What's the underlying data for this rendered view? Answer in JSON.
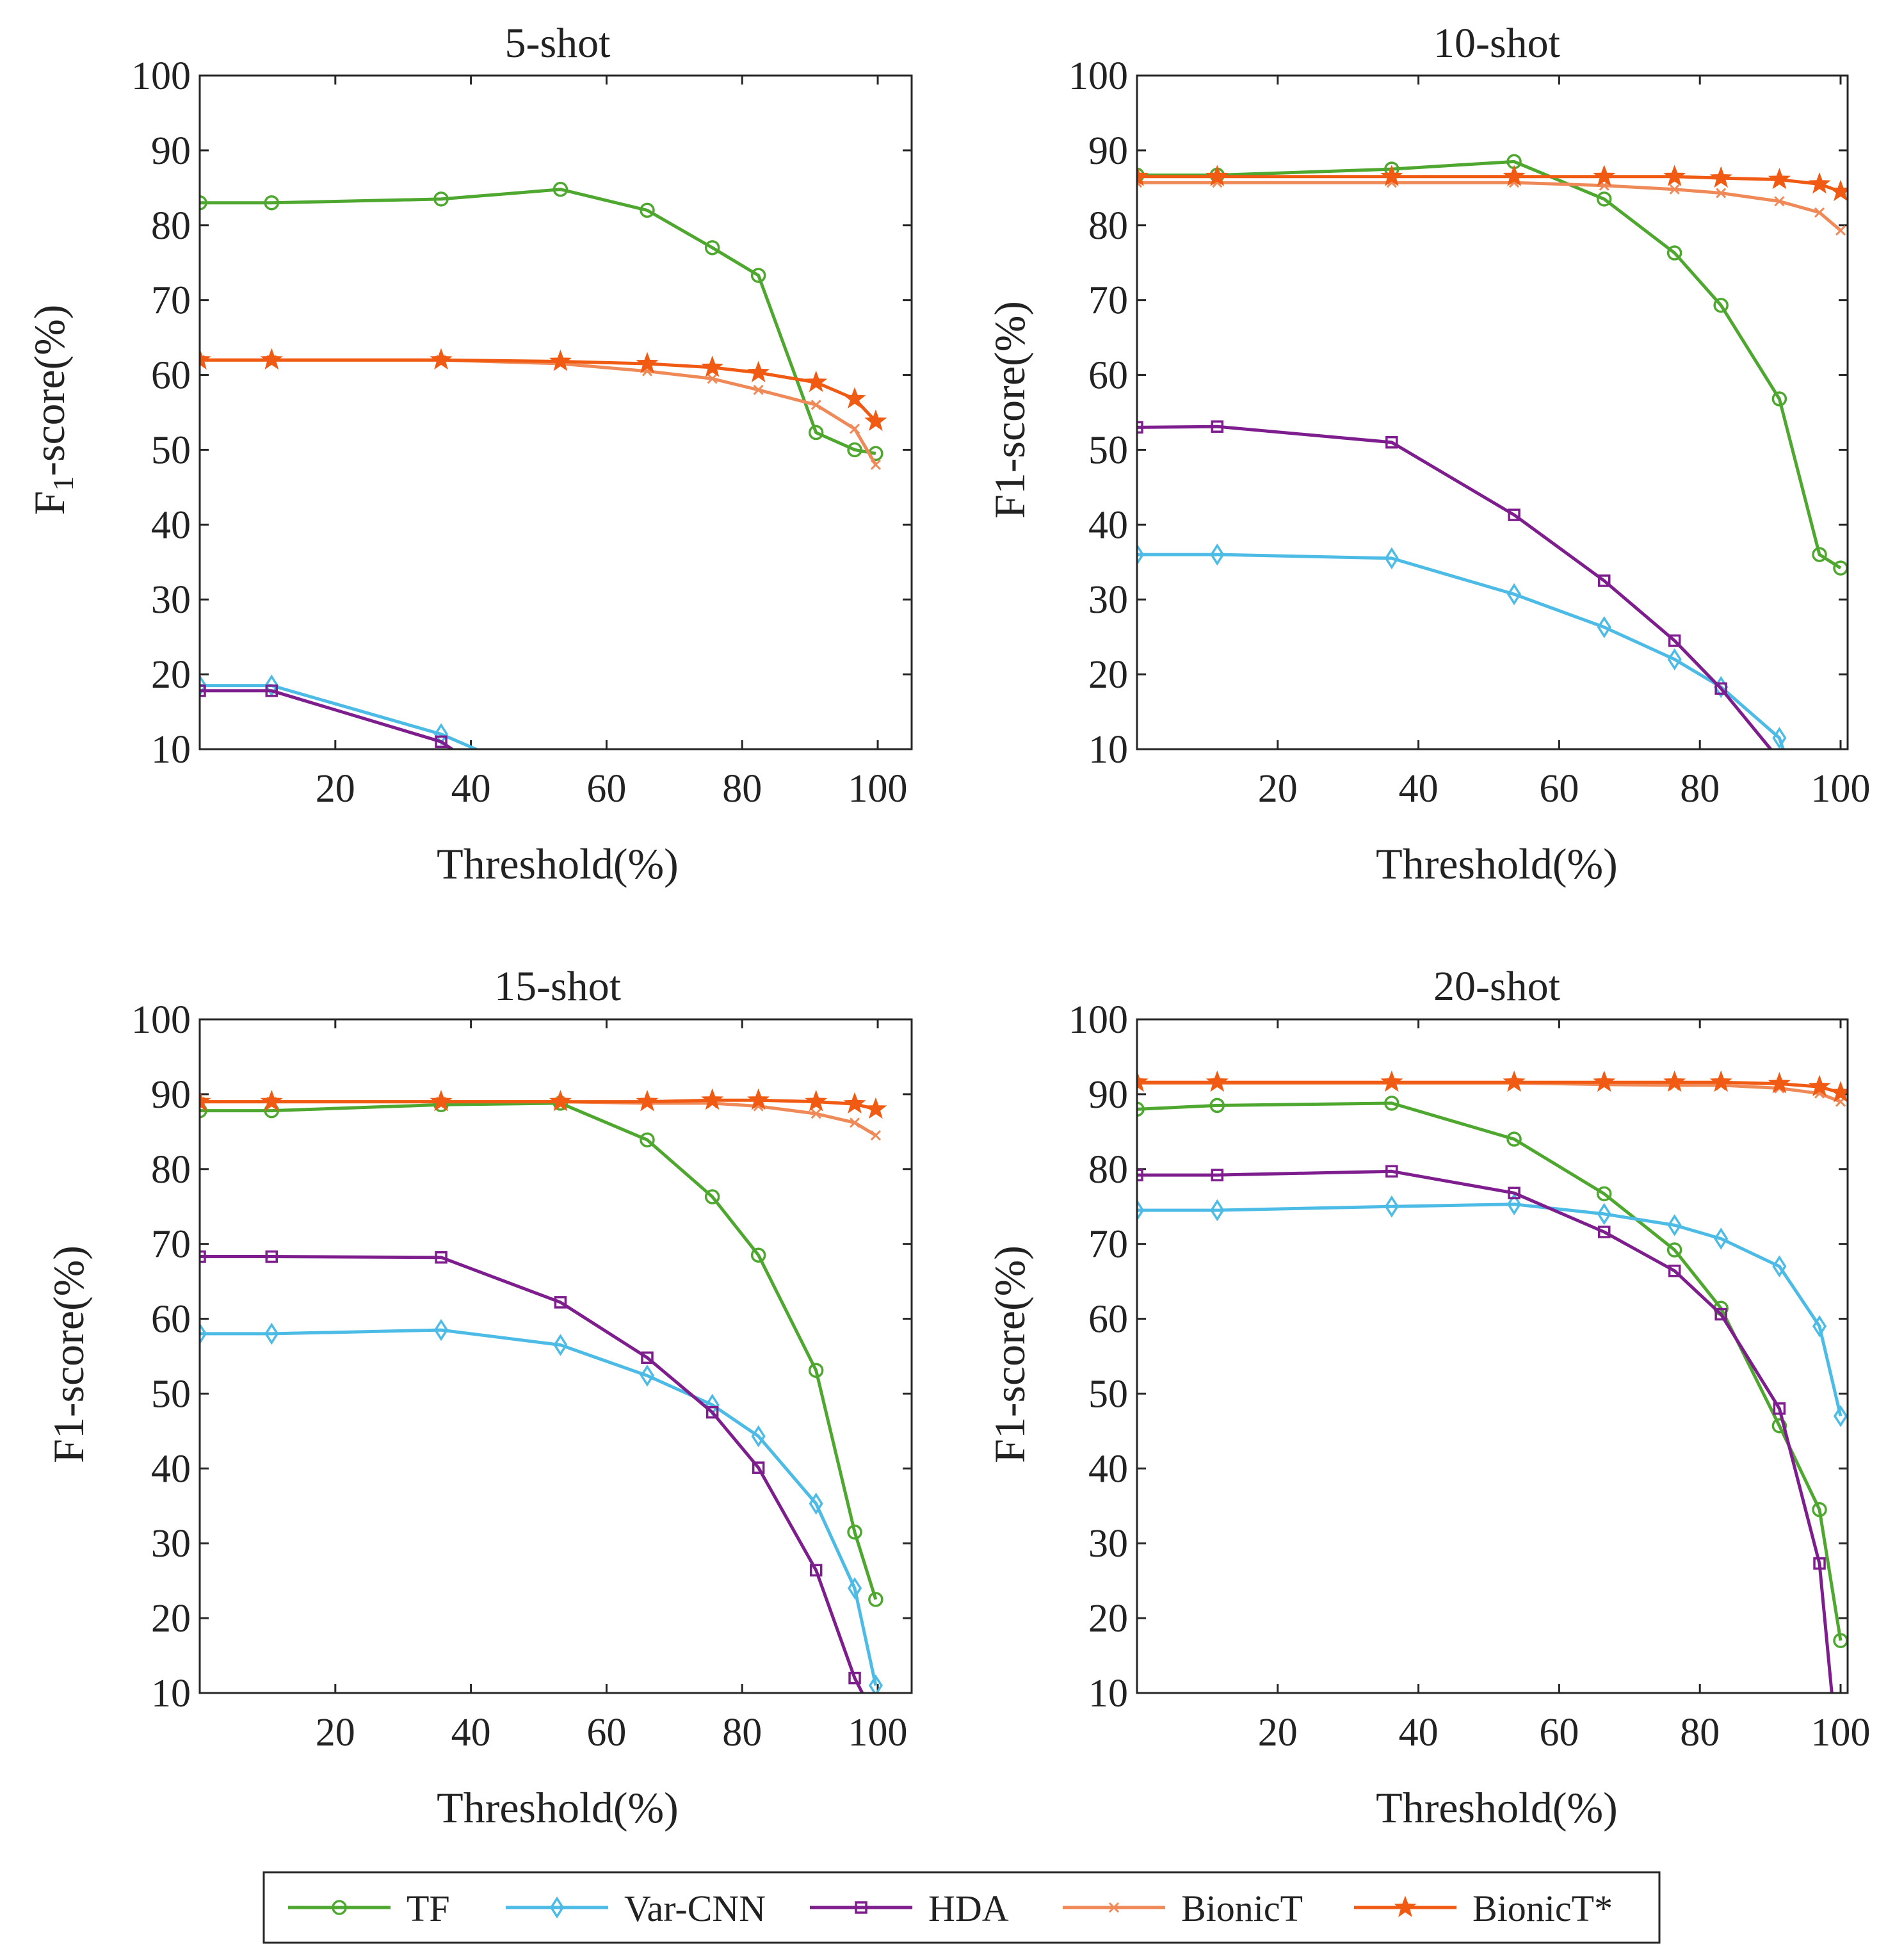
{
  "legend": [
    {
      "name": "TF",
      "color": "#4ea72e",
      "marker": "circle"
    },
    {
      "name": "Var-CNN",
      "color": "#4cbbe6",
      "marker": "diamond"
    },
    {
      "name": "HDA",
      "color": "#7e1e8e",
      "marker": "square"
    },
    {
      "name": "BionicT",
      "color": "#ef8a58",
      "marker": "x"
    },
    {
      "name": "BionicT*",
      "color": "#f05a12",
      "marker": "star"
    }
  ],
  "chart_data": [
    {
      "type": "line",
      "title": "5-shot",
      "xlabel": "Threshold(%)",
      "ylabel": "F1-score(%)",
      "ylabel_main": "F",
      "ylabel_sub": "1",
      "ylabel_rest": "-score(%)",
      "xlim": [
        0,
        105
      ],
      "ylim": [
        10,
        100
      ],
      "xticks": [
        20,
        40,
        60,
        80,
        100
      ],
      "yticks": [
        10,
        20,
        30,
        40,
        50,
        60,
        70,
        80,
        90,
        100
      ],
      "x": [
        0,
        10.6,
        35.6,
        53.2,
        66,
        75.6,
        82.4,
        90.9,
        96.6,
        99.7
      ],
      "series": [
        {
          "name": "TF",
          "values": [
            83,
            83,
            83.5,
            84.8,
            82,
            77,
            73.3,
            52.3,
            50,
            49.5
          ]
        },
        {
          "name": "Var-CNN",
          "x": [
            0,
            10.6,
            35.6,
            42
          ],
          "values": [
            18.5,
            18.5,
            12,
            9.5
          ]
        },
        {
          "name": "HDA",
          "x": [
            0,
            10.6,
            35.6,
            38
          ],
          "values": [
            17.8,
            17.8,
            11,
            9.5
          ]
        },
        {
          "name": "BionicT",
          "values": [
            62,
            62,
            62,
            61.5,
            60.5,
            59.5,
            58,
            56,
            52.8,
            48
          ]
        },
        {
          "name": "BionicT*",
          "values": [
            62,
            62,
            62,
            61.8,
            61.5,
            61,
            60.3,
            59,
            56.8,
            53.8
          ]
        }
      ]
    },
    {
      "type": "line",
      "title": "10-shot",
      "xlabel": "Threshold(%)",
      "ylabel": "F1-score(%)",
      "xlim": [
        0,
        101
      ],
      "ylim": [
        10,
        100
      ],
      "xticks": [
        20,
        40,
        60,
        80,
        100
      ],
      "yticks": [
        10,
        20,
        30,
        40,
        50,
        60,
        70,
        80,
        90,
        100
      ],
      "x": [
        0,
        11.4,
        36.2,
        53.6,
        66.4,
        76.4,
        83,
        91.3,
        97,
        100
      ],
      "series": [
        {
          "name": "TF",
          "values": [
            86.7,
            86.7,
            87.5,
            88.5,
            83.5,
            76.3,
            69.3,
            56.8,
            36,
            34.2
          ]
        },
        {
          "name": "Var-CNN",
          "values": [
            36,
            36,
            35.5,
            30.7,
            26.3,
            22,
            18.3,
            11.5,
            9.5
          ],
          "x": [
            0,
            11.4,
            36.2,
            53.6,
            66.4,
            76.4,
            83,
            91.3,
            92
          ]
        },
        {
          "name": "HDA",
          "values": [
            53,
            53.1,
            51,
            41.3,
            32.5,
            24.5,
            18.1,
            9.5
          ],
          "x": [
            0,
            11.4,
            36.2,
            53.6,
            66.4,
            76.4,
            83,
            90.5
          ]
        },
        {
          "name": "BionicT",
          "values": [
            85.7,
            85.7,
            85.7,
            85.7,
            85.3,
            84.8,
            84.3,
            83.2,
            81.7,
            79.3
          ]
        },
        {
          "name": "BionicT*",
          "values": [
            86.5,
            86.5,
            86.5,
            86.5,
            86.5,
            86.5,
            86.3,
            86.1,
            85.5,
            84.5
          ]
        }
      ]
    },
    {
      "type": "line",
      "title": "15-shot",
      "xlabel": "Threshold(%)",
      "ylabel": "F1-score(%)",
      "xlim": [
        0,
        105
      ],
      "ylim": [
        10,
        100
      ],
      "xticks": [
        20,
        40,
        60,
        80,
        100
      ],
      "yticks": [
        10,
        20,
        30,
        40,
        50,
        60,
        70,
        80,
        90,
        100
      ],
      "x": [
        0,
        10.6,
        35.6,
        53.2,
        66,
        75.6,
        82.4,
        90.9,
        96.6,
        99.7
      ],
      "series": [
        {
          "name": "TF",
          "values": [
            87.8,
            87.8,
            88.6,
            88.8,
            83.9,
            76.3,
            68.5,
            53.1,
            31.5,
            22.5
          ]
        },
        {
          "name": "Var-CNN",
          "values": [
            58,
            58,
            58.5,
            56.5,
            52.4,
            48.5,
            44.3,
            35.3,
            24,
            11
          ]
        },
        {
          "name": "HDA",
          "values": [
            68.3,
            68.3,
            68.2,
            62.2,
            54.8,
            47.5,
            40.1,
            26.4,
            12,
            9.5
          ],
          "x": [
            0,
            10.6,
            35.6,
            53.2,
            66,
            75.6,
            82.4,
            90.9,
            96.6,
            98
          ]
        },
        {
          "name": "BionicT",
          "values": [
            89,
            89,
            89,
            89,
            88.8,
            88.8,
            88.4,
            87.4,
            86.2,
            84.5
          ]
        },
        {
          "name": "BionicT*",
          "values": [
            89,
            89,
            89,
            89,
            89,
            89.2,
            89.2,
            89,
            88.7,
            88
          ]
        }
      ]
    },
    {
      "type": "line",
      "title": "20-shot",
      "xlabel": "Threshold(%)",
      "ylabel": "F1-score(%)",
      "xlim": [
        0,
        101
      ],
      "ylim": [
        10,
        100
      ],
      "xticks": [
        20,
        40,
        60,
        80,
        100
      ],
      "yticks": [
        10,
        20,
        30,
        40,
        50,
        60,
        70,
        80,
        90,
        100
      ],
      "x": [
        0,
        11.4,
        36.2,
        53.6,
        66.4,
        76.4,
        83,
        91.3,
        97,
        100
      ],
      "series": [
        {
          "name": "TF",
          "values": [
            88,
            88.5,
            88.8,
            84,
            76.7,
            69.2,
            61.4,
            45.7,
            34.5,
            17
          ]
        },
        {
          "name": "Var-CNN",
          "values": [
            74.5,
            74.5,
            75,
            75.3,
            74,
            72.5,
            70.7,
            67,
            59,
            47
          ]
        },
        {
          "name": "HDA",
          "values": [
            79.2,
            79.2,
            79.7,
            76.8,
            71.6,
            66.4,
            60.6,
            48,
            27.3,
            9.5
          ],
          "x": [
            0,
            11.4,
            36.2,
            53.6,
            66.4,
            76.4,
            83,
            91.3,
            97,
            98.8
          ]
        },
        {
          "name": "BionicT",
          "values": [
            91.5,
            91.5,
            91.5,
            91.5,
            91.3,
            91.2,
            91.2,
            90.8,
            90.1,
            89
          ]
        },
        {
          "name": "BionicT*",
          "values": [
            91.6,
            91.6,
            91.6,
            91.6,
            91.6,
            91.6,
            91.6,
            91.4,
            91,
            90.2
          ]
        }
      ]
    }
  ]
}
